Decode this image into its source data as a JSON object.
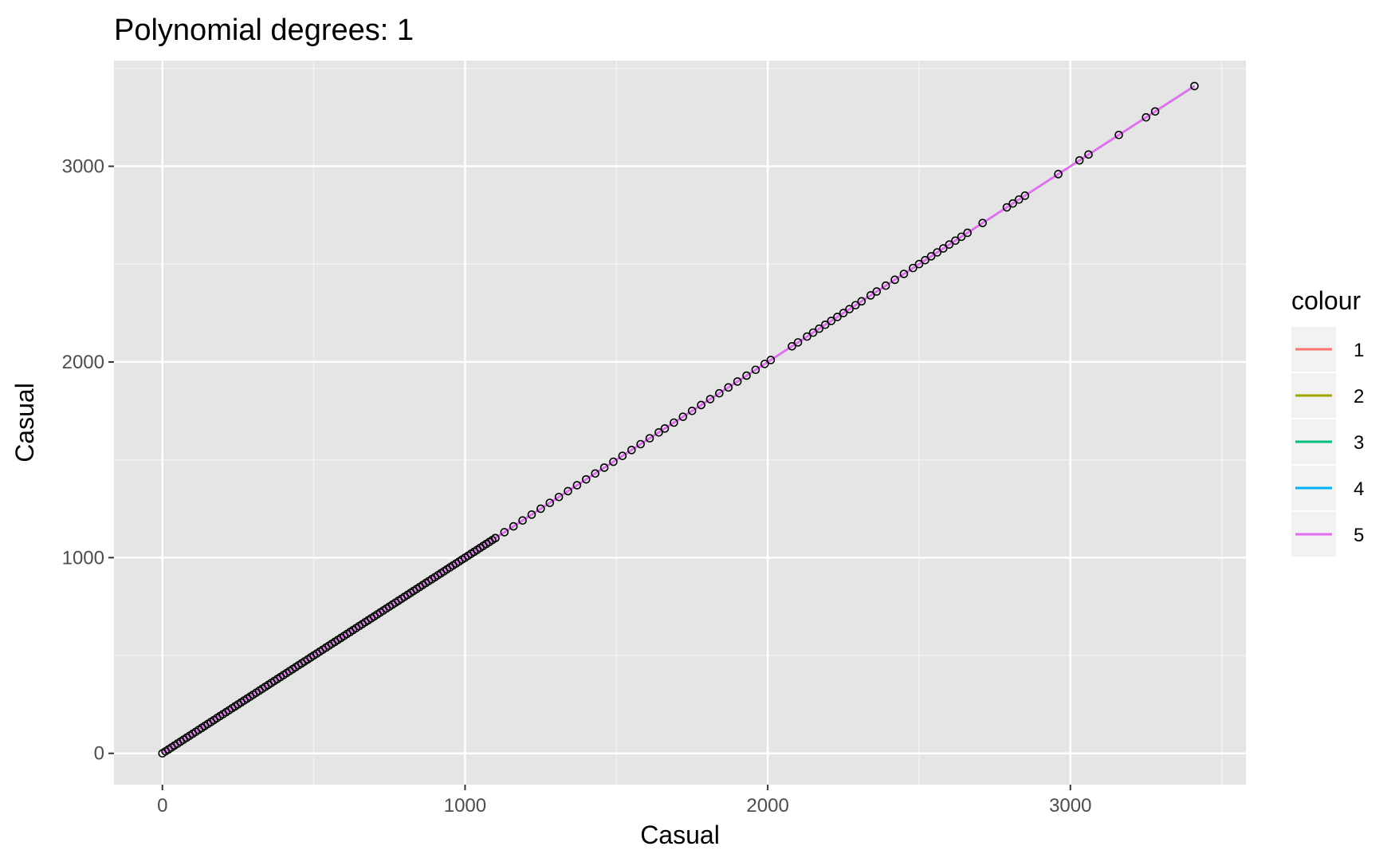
{
  "chart_data": {
    "type": "scatter",
    "title": "Polynomial degrees: 1",
    "xlabel": "Casual",
    "ylabel": "Casual",
    "xlim": [
      -160,
      3580
    ],
    "ylim": [
      -160,
      3540
    ],
    "x_ticks": [
      0,
      1000,
      2000,
      3000
    ],
    "x_tick_labels": [
      "0",
      "1000",
      "2000",
      "3000"
    ],
    "x_minor_ticks": [
      500,
      1500,
      2500,
      3500
    ],
    "y_ticks": [
      0,
      1000,
      2000,
      3000
    ],
    "y_tick_labels": [
      "0",
      "1000",
      "2000",
      "3000"
    ],
    "y_minor_ticks": [
      500,
      1500,
      2500,
      3500
    ],
    "grid": true,
    "background": "#e5e5e5",
    "legend": {
      "title": "colour",
      "position": "right",
      "entries": [
        {
          "label": "1",
          "color": "#f8766d"
        },
        {
          "label": "2",
          "color": "#a3a500"
        },
        {
          "label": "3",
          "color": "#00bf7d"
        },
        {
          "label": "4",
          "color": "#00b0f6"
        },
        {
          "label": "5",
          "color": "#e76bf3"
        }
      ]
    },
    "series": [
      {
        "name": "1",
        "color": "#f8766d",
        "x": [
          0,
          3410
        ],
        "y": [
          0,
          3410
        ]
      },
      {
        "name": "2",
        "color": "#a3a500",
        "x": [
          0,
          3410
        ],
        "y": [
          0,
          3410
        ]
      },
      {
        "name": "3",
        "color": "#00bf7d",
        "x": [
          0,
          3410
        ],
        "y": [
          0,
          3410
        ]
      },
      {
        "name": "4",
        "color": "#00b0f6",
        "x": [
          0,
          3410
        ],
        "y": [
          0,
          3410
        ]
      },
      {
        "name": "5",
        "color": "#e76bf3",
        "x": [
          0,
          3410
        ],
        "y": [
          0,
          3410
        ]
      }
    ],
    "points_x_range": [
      0,
      1100
    ],
    "points": [
      1100,
      1130,
      1160,
      1190,
      1220,
      1250,
      1280,
      1310,
      1340,
      1370,
      1400,
      1430,
      1460,
      1490,
      1520,
      1550,
      1580,
      1610,
      1640,
      1660,
      1690,
      1720,
      1750,
      1780,
      1810,
      1840,
      1870,
      1900,
      1930,
      1960,
      1990,
      2010,
      2080,
      2100,
      2130,
      2150,
      2170,
      2190,
      2210,
      2230,
      2250,
      2270,
      2290,
      2310,
      2340,
      2360,
      2390,
      2420,
      2450,
      2480,
      2500,
      2520,
      2540,
      2560,
      2580,
      2600,
      2620,
      2640,
      2660,
      2710,
      2790,
      2810,
      2830,
      2850,
      2960,
      3030,
      3060,
      3160,
      3250,
      3280,
      3410
    ]
  }
}
